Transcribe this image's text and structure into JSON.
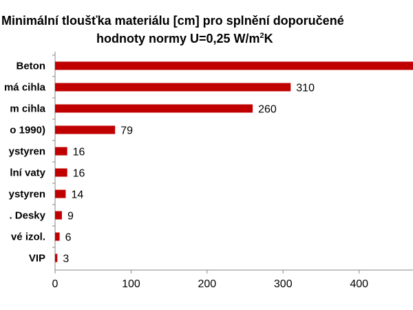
{
  "chart_data": {
    "type": "bar",
    "orientation": "horizontal",
    "title": {
      "line1": "Minimální tloušťka materiálu [cm]  pro splnění doporučené",
      "line2_text": "hodnoty  normy U=0,25 W/m",
      "line2_sup": "2",
      "line2_suffix": "K"
    },
    "categories": [
      "Beton",
      "má cihla",
      "m cihla",
      "o 1990)",
      "ystyren",
      "lní vaty",
      "ystyren",
      ". Desky",
      "vé izol.",
      "VIP"
    ],
    "values": [
      490,
      310,
      260,
      79,
      16,
      16,
      14,
      9,
      6,
      3
    ],
    "data_labels": [
      "",
      "310",
      "260",
      "79",
      "16",
      "16",
      "14",
      "9",
      "6",
      "3"
    ],
    "xlim": [
      0,
      480
    ],
    "xticks": [
      0,
      100,
      200,
      300,
      400
    ],
    "bar_color": "#C00000",
    "grid": false,
    "legend": "none"
  }
}
